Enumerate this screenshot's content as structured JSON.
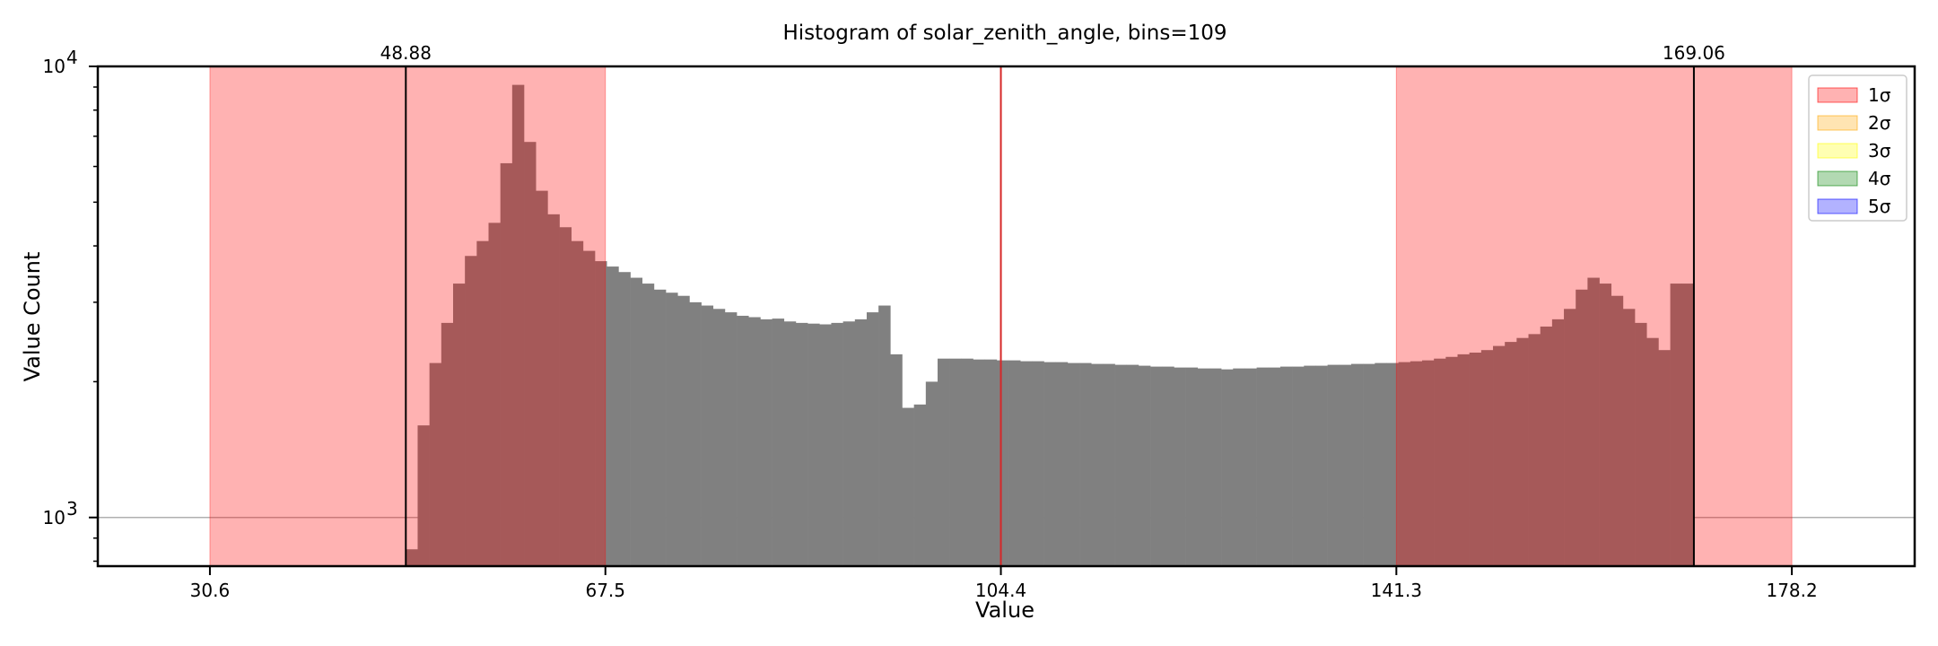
{
  "chart_data": {
    "type": "bar",
    "title": "Histogram of solar_zenith_angle, bins=109",
    "xlabel": "Value",
    "ylabel": "Value Count",
    "y_scale": "log",
    "ylim": [
      780,
      10000
    ],
    "xlim": [
      20.14,
      189.66
    ],
    "x_ticks": [
      30.6,
      67.5,
      104.4,
      141.3,
      178.2
    ],
    "x_tick_labels": [
      "30.6",
      "67.5",
      "104.4",
      "141.3",
      "178.2"
    ],
    "y_ticks": [
      1000,
      10000
    ],
    "y_tick_labels": [
      {
        "base": "10",
        "exp": "3"
      },
      {
        "base": "10",
        "exp": "4"
      }
    ],
    "bin_range": [
      48.88,
      169.06
    ],
    "mean": 104.4,
    "mean_line_color": "#d62728",
    "bar_color": "#808080",
    "grid": "horizontal",
    "sigma_bands": [
      {
        "label": "1σ",
        "ranges": [
          [
            30.6,
            67.5
          ],
          [
            141.3,
            178.2
          ]
        ],
        "color": "#ff0000",
        "opacity": 0.3
      }
    ],
    "vlines": [
      {
        "value": 48.88,
        "label": "48.88",
        "color": "#000000"
      },
      {
        "value": 169.06,
        "label": "169.06",
        "color": "#000000"
      }
    ],
    "legend": {
      "position": "top-right",
      "entries": [
        {
          "label": "1σ",
          "color": "#ff0000"
        },
        {
          "label": "2σ",
          "color": "#ffa500"
        },
        {
          "label": "3σ",
          "color": "#ffff00"
        },
        {
          "label": "4σ",
          "color": "#008000"
        },
        {
          "label": "5σ",
          "color": "#0000ff"
        }
      ]
    },
    "values": [
      850,
      1600,
      2200,
      2700,
      3300,
      3800,
      4100,
      4500,
      6100,
      9100,
      6800,
      5300,
      4700,
      4400,
      4100,
      3900,
      3700,
      3600,
      3500,
      3400,
      3300,
      3200,
      3150,
      3100,
      3000,
      2950,
      2900,
      2850,
      2800,
      2780,
      2750,
      2760,
      2720,
      2700,
      2690,
      2680,
      2700,
      2720,
      2750,
      2850,
      2950,
      2300,
      1750,
      1780,
      2000,
      2250,
      2250,
      2250,
      2240,
      2240,
      2230,
      2230,
      2220,
      2220,
      2210,
      2210,
      2200,
      2200,
      2190,
      2190,
      2180,
      2180,
      2170,
      2160,
      2160,
      2150,
      2150,
      2140,
      2140,
      2130,
      2140,
      2140,
      2150,
      2150,
      2160,
      2160,
      2170,
      2170,
      2180,
      2180,
      2190,
      2190,
      2200,
      2200,
      2210,
      2220,
      2230,
      2250,
      2270,
      2300,
      2320,
      2350,
      2400,
      2450,
      2500,
      2550,
      2650,
      2750,
      2900,
      3200,
      3400,
      3300,
      3100,
      2900,
      2700,
      2500,
      2350,
      3300,
      3300
    ]
  }
}
